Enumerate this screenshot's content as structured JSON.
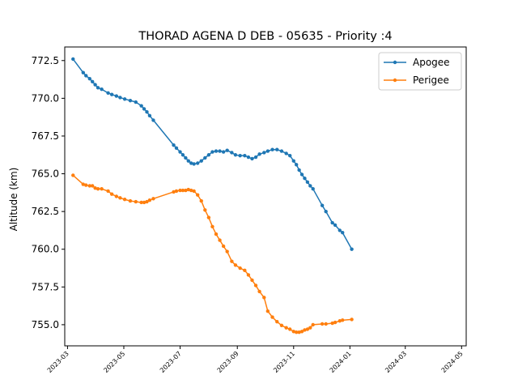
{
  "chart_data": {
    "type": "line",
    "title": "THORAD AGENA D DEB - 05635 - Priority :4",
    "xlabel": "",
    "ylabel": "Altitude (km)",
    "xlim": [
      "2023-02-26",
      "2024-05-06"
    ],
    "ylim": [
      753.6,
      773.4
    ],
    "x_ticks": [
      "2023-03",
      "2023-05",
      "2023-07",
      "2023-09",
      "2023-11",
      "2024-01",
      "2024-03",
      "2024-05"
    ],
    "y_ticks": [
      755.0,
      757.5,
      760.0,
      762.5,
      765.0,
      767.5,
      770.0,
      772.5
    ],
    "y_tick_labels": [
      "755.0",
      "757.5",
      "760.0",
      "762.5",
      "765.0",
      "767.5",
      "770.0",
      "772.5"
    ],
    "grid": false,
    "legend_position": "upper right",
    "colors": {
      "Apogee": "#1f77b4",
      "Perigee": "#ff7f0e"
    },
    "series": [
      {
        "name": "Apogee",
        "marker": "point",
        "points": [
          [
            "2023-03-07",
            772.6
          ],
          [
            "2023-03-18",
            771.7
          ],
          [
            "2023-03-21",
            771.5
          ],
          [
            "2023-03-25",
            771.3
          ],
          [
            "2023-03-28",
            771.1
          ],
          [
            "2023-03-31",
            770.9
          ],
          [
            "2023-04-03",
            770.7
          ],
          [
            "2023-04-07",
            770.6
          ],
          [
            "2023-04-14",
            770.35
          ],
          [
            "2023-04-18",
            770.25
          ],
          [
            "2023-04-23",
            770.15
          ],
          [
            "2023-04-27",
            770.05
          ],
          [
            "2023-05-02",
            769.95
          ],
          [
            "2023-05-08",
            769.85
          ],
          [
            "2023-05-14",
            769.75
          ],
          [
            "2023-05-20",
            769.5
          ],
          [
            "2023-05-23",
            769.3
          ],
          [
            "2023-05-26",
            769.1
          ],
          [
            "2023-05-29",
            768.85
          ],
          [
            "2023-06-02",
            768.55
          ],
          [
            "2023-06-24",
            766.9
          ],
          [
            "2023-06-27",
            766.7
          ],
          [
            "2023-07-01",
            766.45
          ],
          [
            "2023-07-04",
            766.25
          ],
          [
            "2023-07-07",
            766.05
          ],
          [
            "2023-07-10",
            765.85
          ],
          [
            "2023-07-13",
            765.7
          ],
          [
            "2023-07-16",
            765.65
          ],
          [
            "2023-07-20",
            765.7
          ],
          [
            "2023-07-24",
            765.85
          ],
          [
            "2023-07-28",
            766.05
          ],
          [
            "2023-08-01",
            766.25
          ],
          [
            "2023-08-05",
            766.45
          ],
          [
            "2023-08-09",
            766.5
          ],
          [
            "2023-08-13",
            766.5
          ],
          [
            "2023-08-17",
            766.45
          ],
          [
            "2023-08-21",
            766.55
          ],
          [
            "2023-08-26",
            766.4
          ],
          [
            "2023-08-30",
            766.25
          ],
          [
            "2023-09-04",
            766.2
          ],
          [
            "2023-09-09",
            766.2
          ],
          [
            "2023-09-13",
            766.1
          ],
          [
            "2023-09-17",
            766.0
          ],
          [
            "2023-09-21",
            766.1
          ],
          [
            "2023-09-25",
            766.3
          ],
          [
            "2023-09-30",
            766.4
          ],
          [
            "2023-10-04",
            766.5
          ],
          [
            "2023-10-09",
            766.6
          ],
          [
            "2023-10-14",
            766.6
          ],
          [
            "2023-10-19",
            766.5
          ],
          [
            "2023-10-24",
            766.35
          ],
          [
            "2023-10-28",
            766.2
          ],
          [
            "2023-11-01",
            765.85
          ],
          [
            "2023-11-04",
            765.6
          ],
          [
            "2023-11-07",
            765.25
          ],
          [
            "2023-11-10",
            764.95
          ],
          [
            "2023-11-13",
            764.7
          ],
          [
            "2023-11-16",
            764.45
          ],
          [
            "2023-11-19",
            764.2
          ],
          [
            "2023-11-22",
            764.0
          ],
          [
            "2023-12-02",
            762.9
          ],
          [
            "2023-12-06",
            762.5
          ],
          [
            "2023-12-13",
            761.75
          ],
          [
            "2023-12-16",
            761.6
          ],
          [
            "2023-12-21",
            761.25
          ],
          [
            "2023-12-24",
            761.1
          ],
          [
            "2024-01-03",
            760.0
          ]
        ]
      },
      {
        "name": "Perigee",
        "marker": "point",
        "points": [
          [
            "2023-03-07",
            764.9
          ],
          [
            "2023-03-18",
            764.3
          ],
          [
            "2023-03-21",
            764.25
          ],
          [
            "2023-03-25",
            764.2
          ],
          [
            "2023-03-28",
            764.2
          ],
          [
            "2023-03-31",
            764.05
          ],
          [
            "2023-04-03",
            764.0
          ],
          [
            "2023-04-07",
            764.0
          ],
          [
            "2023-04-14",
            763.85
          ],
          [
            "2023-04-18",
            763.65
          ],
          [
            "2023-04-23",
            763.5
          ],
          [
            "2023-04-27",
            763.4
          ],
          [
            "2023-05-02",
            763.3
          ],
          [
            "2023-05-08",
            763.2
          ],
          [
            "2023-05-14",
            763.15
          ],
          [
            "2023-05-20",
            763.1
          ],
          [
            "2023-05-23",
            763.1
          ],
          [
            "2023-05-26",
            763.15
          ],
          [
            "2023-05-29",
            763.25
          ],
          [
            "2023-06-02",
            763.35
          ],
          [
            "2023-06-24",
            763.8
          ],
          [
            "2023-06-27",
            763.85
          ],
          [
            "2023-07-01",
            763.9
          ],
          [
            "2023-07-04",
            763.9
          ],
          [
            "2023-07-07",
            763.9
          ],
          [
            "2023-07-10",
            763.95
          ],
          [
            "2023-07-13",
            763.9
          ],
          [
            "2023-07-16",
            763.85
          ],
          [
            "2023-07-20",
            763.6
          ],
          [
            "2023-07-24",
            763.2
          ],
          [
            "2023-07-28",
            762.6
          ],
          [
            "2023-08-01",
            762.1
          ],
          [
            "2023-08-05",
            761.5
          ],
          [
            "2023-08-09",
            761.0
          ],
          [
            "2023-08-13",
            760.6
          ],
          [
            "2023-08-17",
            760.2
          ],
          [
            "2023-08-21",
            759.85
          ],
          [
            "2023-08-26",
            759.2
          ],
          [
            "2023-08-30",
            758.95
          ],
          [
            "2023-09-04",
            758.75
          ],
          [
            "2023-09-09",
            758.6
          ],
          [
            "2023-09-13",
            758.3
          ],
          [
            "2023-09-17",
            757.95
          ],
          [
            "2023-09-21",
            757.6
          ],
          [
            "2023-09-25",
            757.2
          ],
          [
            "2023-09-30",
            756.8
          ],
          [
            "2023-10-04",
            755.9
          ],
          [
            "2023-10-09",
            755.5
          ],
          [
            "2023-10-14",
            755.2
          ],
          [
            "2023-10-19",
            754.95
          ],
          [
            "2023-10-24",
            754.8
          ],
          [
            "2023-10-28",
            754.7
          ],
          [
            "2023-11-01",
            754.55
          ],
          [
            "2023-11-04",
            754.5
          ],
          [
            "2023-11-07",
            754.5
          ],
          [
            "2023-11-10",
            754.55
          ],
          [
            "2023-11-13",
            754.65
          ],
          [
            "2023-11-16",
            754.7
          ],
          [
            "2023-11-19",
            754.8
          ],
          [
            "2023-11-22",
            755.0
          ],
          [
            "2023-12-02",
            755.05
          ],
          [
            "2023-12-06",
            755.05
          ],
          [
            "2023-12-13",
            755.1
          ],
          [
            "2023-12-16",
            755.15
          ],
          [
            "2023-12-21",
            755.25
          ],
          [
            "2023-12-24",
            755.3
          ],
          [
            "2024-01-03",
            755.35
          ]
        ]
      }
    ]
  }
}
